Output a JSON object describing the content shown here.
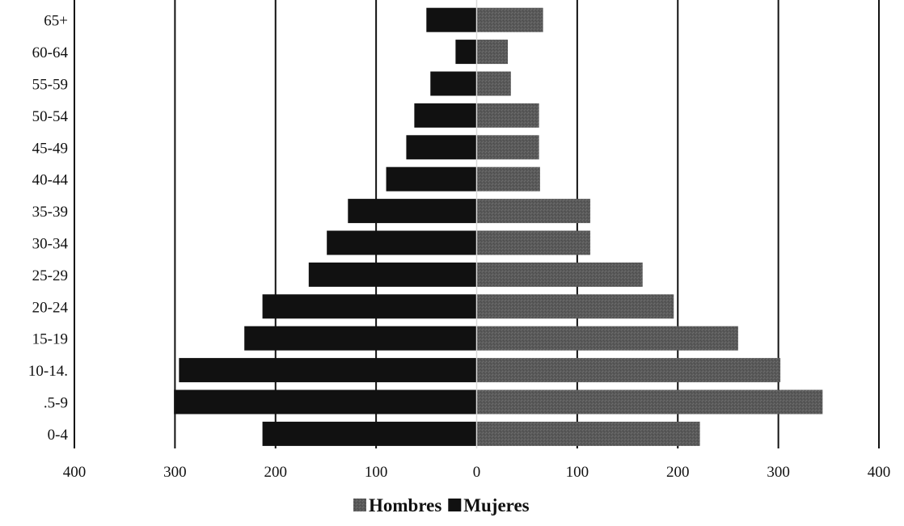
{
  "chart_data": {
    "type": "bar",
    "orientation": "horizontal",
    "layout": "population-pyramid",
    "categories": [
      "0-4",
      ".5-9",
      "10-14.",
      "15-19",
      "20-24",
      "25-29",
      "30-34",
      "35-39",
      "40-44",
      "45-49",
      "50-54",
      "55-59",
      "60-64",
      "65+"
    ],
    "series": [
      {
        "name": "Hombres",
        "side": "right",
        "color": "#5a5a5a",
        "values": [
          222,
          344,
          302,
          260,
          196,
          165,
          113,
          113,
          63,
          62,
          62,
          34,
          31,
          66
        ]
      },
      {
        "name": "Mujeres",
        "side": "left",
        "color": "#111111",
        "values": [
          213,
          301,
          296,
          231,
          213,
          167,
          149,
          128,
          90,
          70,
          62,
          46,
          21,
          50
        ]
      }
    ],
    "xlim": [
      -400,
      400
    ],
    "x_ticks": [
      -400,
      -300,
      -200,
      -100,
      0,
      100,
      200,
      300,
      400
    ],
    "x_tick_labels": [
      "400",
      "300",
      "200",
      "100",
      "0",
      "100",
      "200",
      "300",
      "400"
    ],
    "title": "",
    "xlabel": "",
    "ylabel": "",
    "grid": "vertical",
    "legend_position": "bottom-center"
  }
}
